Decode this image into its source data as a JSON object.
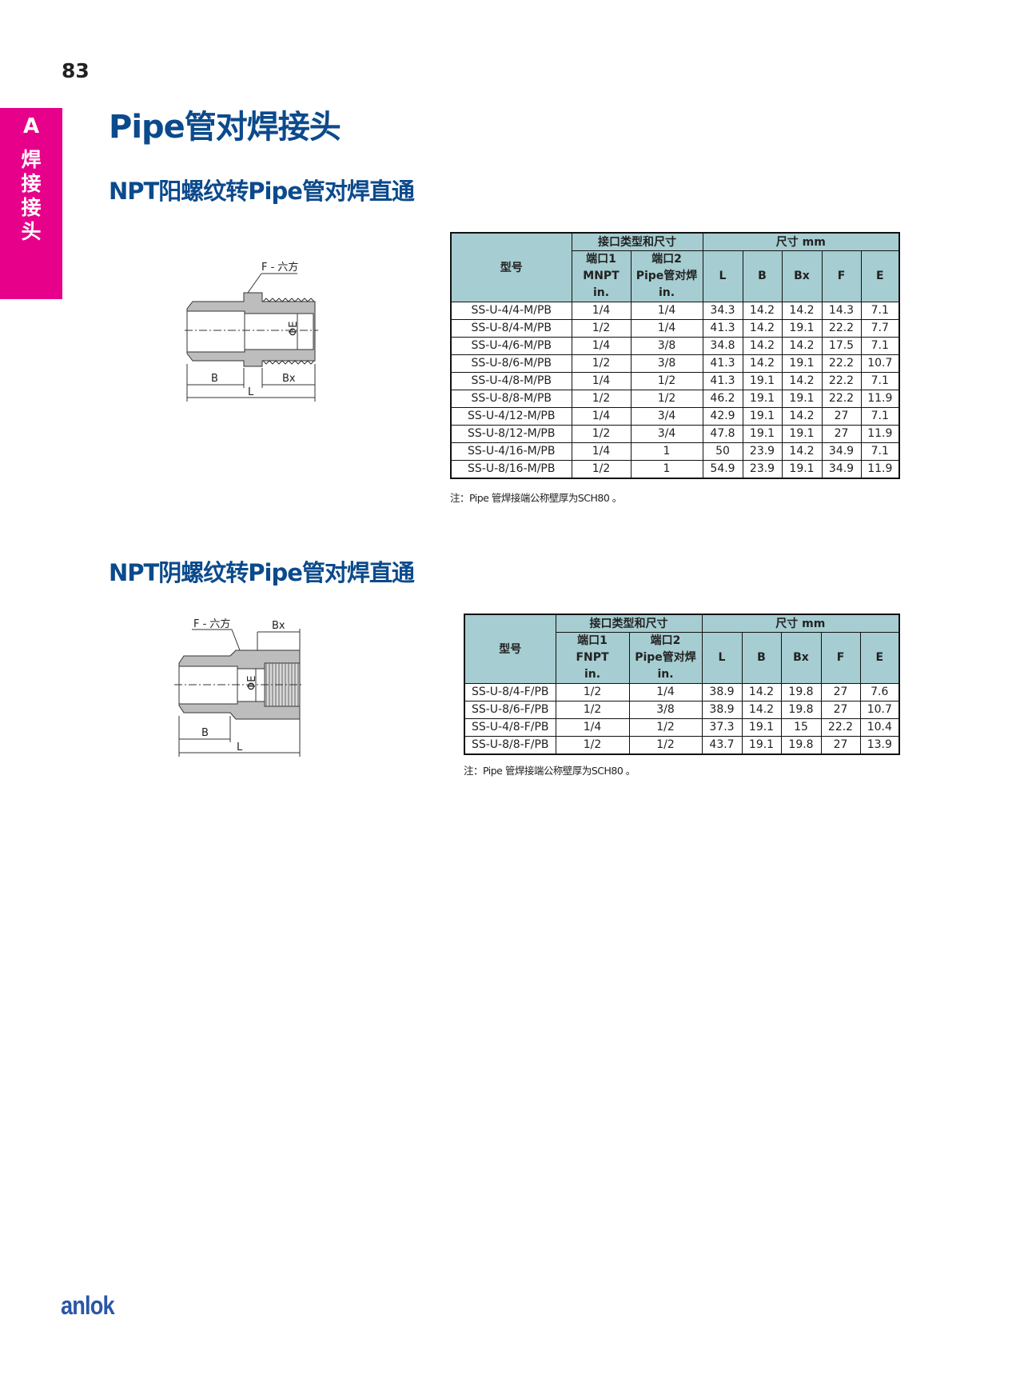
{
  "page_number": "83",
  "side_tab": {
    "letter": "A",
    "label": "焊接接头",
    "color": "#e6008a"
  },
  "title": "Pipe管对焊接头",
  "sections": [
    {
      "subtitle": "NPT阳螺纹转Pipe管对焊直通",
      "drawing": {
        "hex_label": "F - 六方",
        "b": "B",
        "bx": "Bx",
        "l": "L",
        "e": "ΦE"
      },
      "table": {
        "header_model": "型号",
        "header_group1": "接口类型和尺寸",
        "header_group2": "尺寸 mm",
        "port1": [
          "端口1",
          "MNPT",
          "in."
        ],
        "port2": [
          "端口2",
          "Pipe管对焊",
          "in."
        ],
        "dims": [
          "L",
          "B",
          "Bx",
          "F",
          "E"
        ],
        "rows": [
          [
            "SS-U-4/4-M/PB",
            "1/4",
            "1/4",
            "34.3",
            "14.2",
            "14.2",
            "14.3",
            "7.1"
          ],
          [
            "SS-U-8/4-M/PB",
            "1/2",
            "1/4",
            "41.3",
            "14.2",
            "19.1",
            "22.2",
            "7.7"
          ],
          [
            "SS-U-4/6-M/PB",
            "1/4",
            "3/8",
            "34.8",
            "14.2",
            "14.2",
            "17.5",
            "7.1"
          ],
          [
            "SS-U-8/6-M/PB",
            "1/2",
            "3/8",
            "41.3",
            "14.2",
            "19.1",
            "22.2",
            "10.7"
          ],
          [
            "SS-U-4/8-M/PB",
            "1/4",
            "1/2",
            "41.3",
            "19.1",
            "14.2",
            "22.2",
            "7.1"
          ],
          [
            "SS-U-8/8-M/PB",
            "1/2",
            "1/2",
            "46.2",
            "19.1",
            "19.1",
            "22.2",
            "11.9"
          ],
          [
            "SS-U-4/12-M/PB",
            "1/4",
            "3/4",
            "42.9",
            "19.1",
            "14.2",
            "27",
            "7.1"
          ],
          [
            "SS-U-8/12-M/PB",
            "1/2",
            "3/4",
            "47.8",
            "19.1",
            "19.1",
            "27",
            "11.9"
          ],
          [
            "SS-U-4/16-M/PB",
            "1/4",
            "1",
            "50",
            "23.9",
            "14.2",
            "34.9",
            "7.1"
          ],
          [
            "SS-U-8/16-M/PB",
            "1/2",
            "1",
            "54.9",
            "23.9",
            "19.1",
            "34.9",
            "11.9"
          ]
        ]
      },
      "note": "注：Pipe 管焊接端公称壁厚为SCH80 。"
    },
    {
      "subtitle": "NPT阴螺纹转Pipe管对焊直通",
      "drawing": {
        "hex_label": "F - 六方",
        "b": "B",
        "bx": "Bx",
        "l": "L",
        "e": "ΦE"
      },
      "table": {
        "header_model": "型号",
        "header_group1": "接口类型和尺寸",
        "header_group2": "尺寸 mm",
        "port1": [
          "端口1",
          "FNPT",
          "in."
        ],
        "port2": [
          "端口2",
          "Pipe管对焊",
          "in."
        ],
        "dims": [
          "L",
          "B",
          "Bx",
          "F",
          "E"
        ],
        "rows": [
          [
            "SS-U-8/4-F/PB",
            "1/2",
            "1/4",
            "38.9",
            "14.2",
            "19.8",
            "27",
            "7.6"
          ],
          [
            "SS-U-8/6-F/PB",
            "1/2",
            "3/8",
            "38.9",
            "14.2",
            "19.8",
            "27",
            "10.7"
          ],
          [
            "SS-U-4/8-F/PB",
            "1/4",
            "1/2",
            "37.3",
            "19.1",
            "15",
            "22.2",
            "10.4"
          ],
          [
            "SS-U-8/8-F/PB",
            "1/2",
            "1/2",
            "43.7",
            "19.1",
            "19.8",
            "27",
            "13.9"
          ]
        ]
      },
      "note": "注：Pipe 管焊接端公称壁厚为SCH80 。"
    }
  ],
  "colors": {
    "title": "#0b4a8c",
    "table_header": "#a6cdd1",
    "logo": "#2a56a8"
  },
  "logo": "anlok"
}
